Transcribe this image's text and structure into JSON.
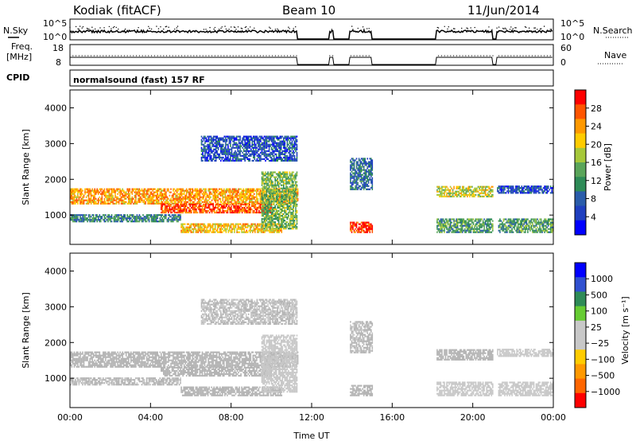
{
  "header": {
    "station": "Kodiak (fitACF)",
    "beam": "Beam 10",
    "date": "11/Jun/2014"
  },
  "top_strips": {
    "nsky_label": "N.Sky",
    "nsky_ticks": [
      "10^5",
      "10^0"
    ],
    "nsearch_label": "N.Search",
    "nsearch_ticks": [
      "10^5",
      "10^0"
    ],
    "freq_label": "Freq.",
    "freq_unit": "[MHz]",
    "freq_ticks": [
      "18",
      "8"
    ],
    "nave_label": "Nave",
    "nave_ticks": [
      "60",
      "0"
    ],
    "cpid_label": "CPID",
    "cpid_text": "normalsound (fast) 157 RF"
  },
  "colors": {
    "power_scale": [
      "#0000ff",
      "#1f3fbf",
      "#2a5caa",
      "#2e8b57",
      "#5aa55a",
      "#a6c83a",
      "#ffcc00",
      "#ff9900",
      "#ff5500",
      "#ff0000"
    ],
    "velocity_scale": [
      "#0000ff",
      "#3050d0",
      "#2e8b57",
      "#66cc33",
      "#c8c8c8",
      "#c8c8c8",
      "#ffcc00",
      "#ff9900",
      "#ff6600",
      "#ff0000"
    ],
    "ground_scatter": "#b4b4b4"
  },
  "chart_data": [
    {
      "type": "heatmap",
      "name": "power",
      "xlabel": "Time UT",
      "ylabel": "Slant Range [km]",
      "x_ticks": [
        "00:00",
        "04:00",
        "08:00",
        "12:00",
        "16:00",
        "20:00",
        "00:00"
      ],
      "x_range_hours": [
        0,
        24
      ],
      "ylim": [
        180,
        4500
      ],
      "y_ticks": [
        "4000",
        "3000",
        "2000",
        "1000"
      ],
      "colorbar_label": "Power [dB]",
      "colorbar_ticks": [
        "28",
        "24",
        "20",
        "16",
        "12",
        "8",
        "4"
      ],
      "colorbar_range": [
        0,
        30
      ],
      "data_gaps_hours": [
        [
          11.3,
          12.9
        ],
        [
          13.1,
          13.9
        ],
        [
          15.0,
          18.2
        ],
        [
          21.0,
          21.2
        ]
      ],
      "echo_bands": [
        {
          "t": [
            0.0,
            11.3
          ],
          "range_km": [
            1300,
            1750
          ],
          "power_db": 22
        },
        {
          "t": [
            4.5,
            10.0
          ],
          "range_km": [
            1050,
            1300
          ],
          "power_db": 26
        },
        {
          "t": [
            0.0,
            5.5
          ],
          "range_km": [
            800,
            1000
          ],
          "power_db": 10
        },
        {
          "t": [
            5.5,
            10.5
          ],
          "range_km": [
            500,
            750
          ],
          "power_db": 20
        },
        {
          "t": [
            9.5,
            11.3
          ],
          "range_km": [
            600,
            2200
          ],
          "power_db": 14
        },
        {
          "t": [
            6.5,
            11.3
          ],
          "range_km": [
            2500,
            3200
          ],
          "power_db": 6
        },
        {
          "t": [
            13.9,
            15.0
          ],
          "range_km": [
            500,
            800
          ],
          "power_db": 27
        },
        {
          "t": [
            13.9,
            15.0
          ],
          "range_km": [
            1700,
            2600
          ],
          "power_db": 8
        },
        {
          "t": [
            18.2,
            21.0
          ],
          "range_km": [
            1500,
            1800
          ],
          "power_db": 18
        },
        {
          "t": [
            18.2,
            24.0
          ],
          "range_km": [
            500,
            900
          ],
          "power_db": 12
        },
        {
          "t": [
            21.2,
            24.0
          ],
          "range_km": [
            1600,
            1800
          ],
          "power_db": 6
        }
      ]
    },
    {
      "type": "heatmap",
      "name": "velocity",
      "xlabel": "Time UT",
      "ylabel": "Slant Range [km]",
      "x_ticks": [
        "00:00",
        "04:00",
        "08:00",
        "12:00",
        "16:00",
        "20:00",
        "00:00"
      ],
      "x_range_hours": [
        0,
        24
      ],
      "ylim": [
        180,
        4500
      ],
      "y_ticks": [
        "4000",
        "3000",
        "2000",
        "1000"
      ],
      "colorbar_label": "Velocity [m s⁻¹]",
      "colorbar_ticks": [
        "1000",
        "500",
        "100",
        "25",
        "−25",
        "−100",
        "−500",
        "−1000"
      ],
      "colorbar_range": [
        -1250,
        1250
      ],
      "data_gaps_hours": [
        [
          11.3,
          12.9
        ],
        [
          13.1,
          13.9
        ],
        [
          15.0,
          18.2
        ],
        [
          21.0,
          21.2
        ]
      ],
      "echo_bands": [
        {
          "t": [
            0.0,
            11.3
          ],
          "range_km": [
            1300,
            1750
          ],
          "velocity": 0
        },
        {
          "t": [
            4.5,
            10.0
          ],
          "range_km": [
            1050,
            1300
          ],
          "velocity": 0
        },
        {
          "t": [
            0.0,
            5.5
          ],
          "range_km": [
            800,
            1000
          ],
          "velocity": -20
        },
        {
          "t": [
            5.5,
            10.5
          ],
          "range_km": [
            500,
            750
          ],
          "velocity": 0
        },
        {
          "t": [
            9.5,
            11.3
          ],
          "range_km": [
            600,
            2200
          ],
          "velocity": 150
        },
        {
          "t": [
            6.5,
            11.3
          ],
          "range_km": [
            2500,
            3200
          ],
          "velocity": -30
        },
        {
          "t": [
            13.9,
            15.0
          ],
          "range_km": [
            500,
            800
          ],
          "velocity": 0
        },
        {
          "t": [
            13.9,
            15.0
          ],
          "range_km": [
            1700,
            2600
          ],
          "velocity": 20
        },
        {
          "t": [
            18.2,
            21.0
          ],
          "range_km": [
            1500,
            1800
          ],
          "velocity": 0
        },
        {
          "t": [
            18.2,
            24.0
          ],
          "range_km": [
            500,
            900
          ],
          "velocity": -150
        },
        {
          "t": [
            21.2,
            24.0
          ],
          "range_km": [
            1600,
            1800
          ],
          "velocity": 100
        }
      ]
    }
  ]
}
